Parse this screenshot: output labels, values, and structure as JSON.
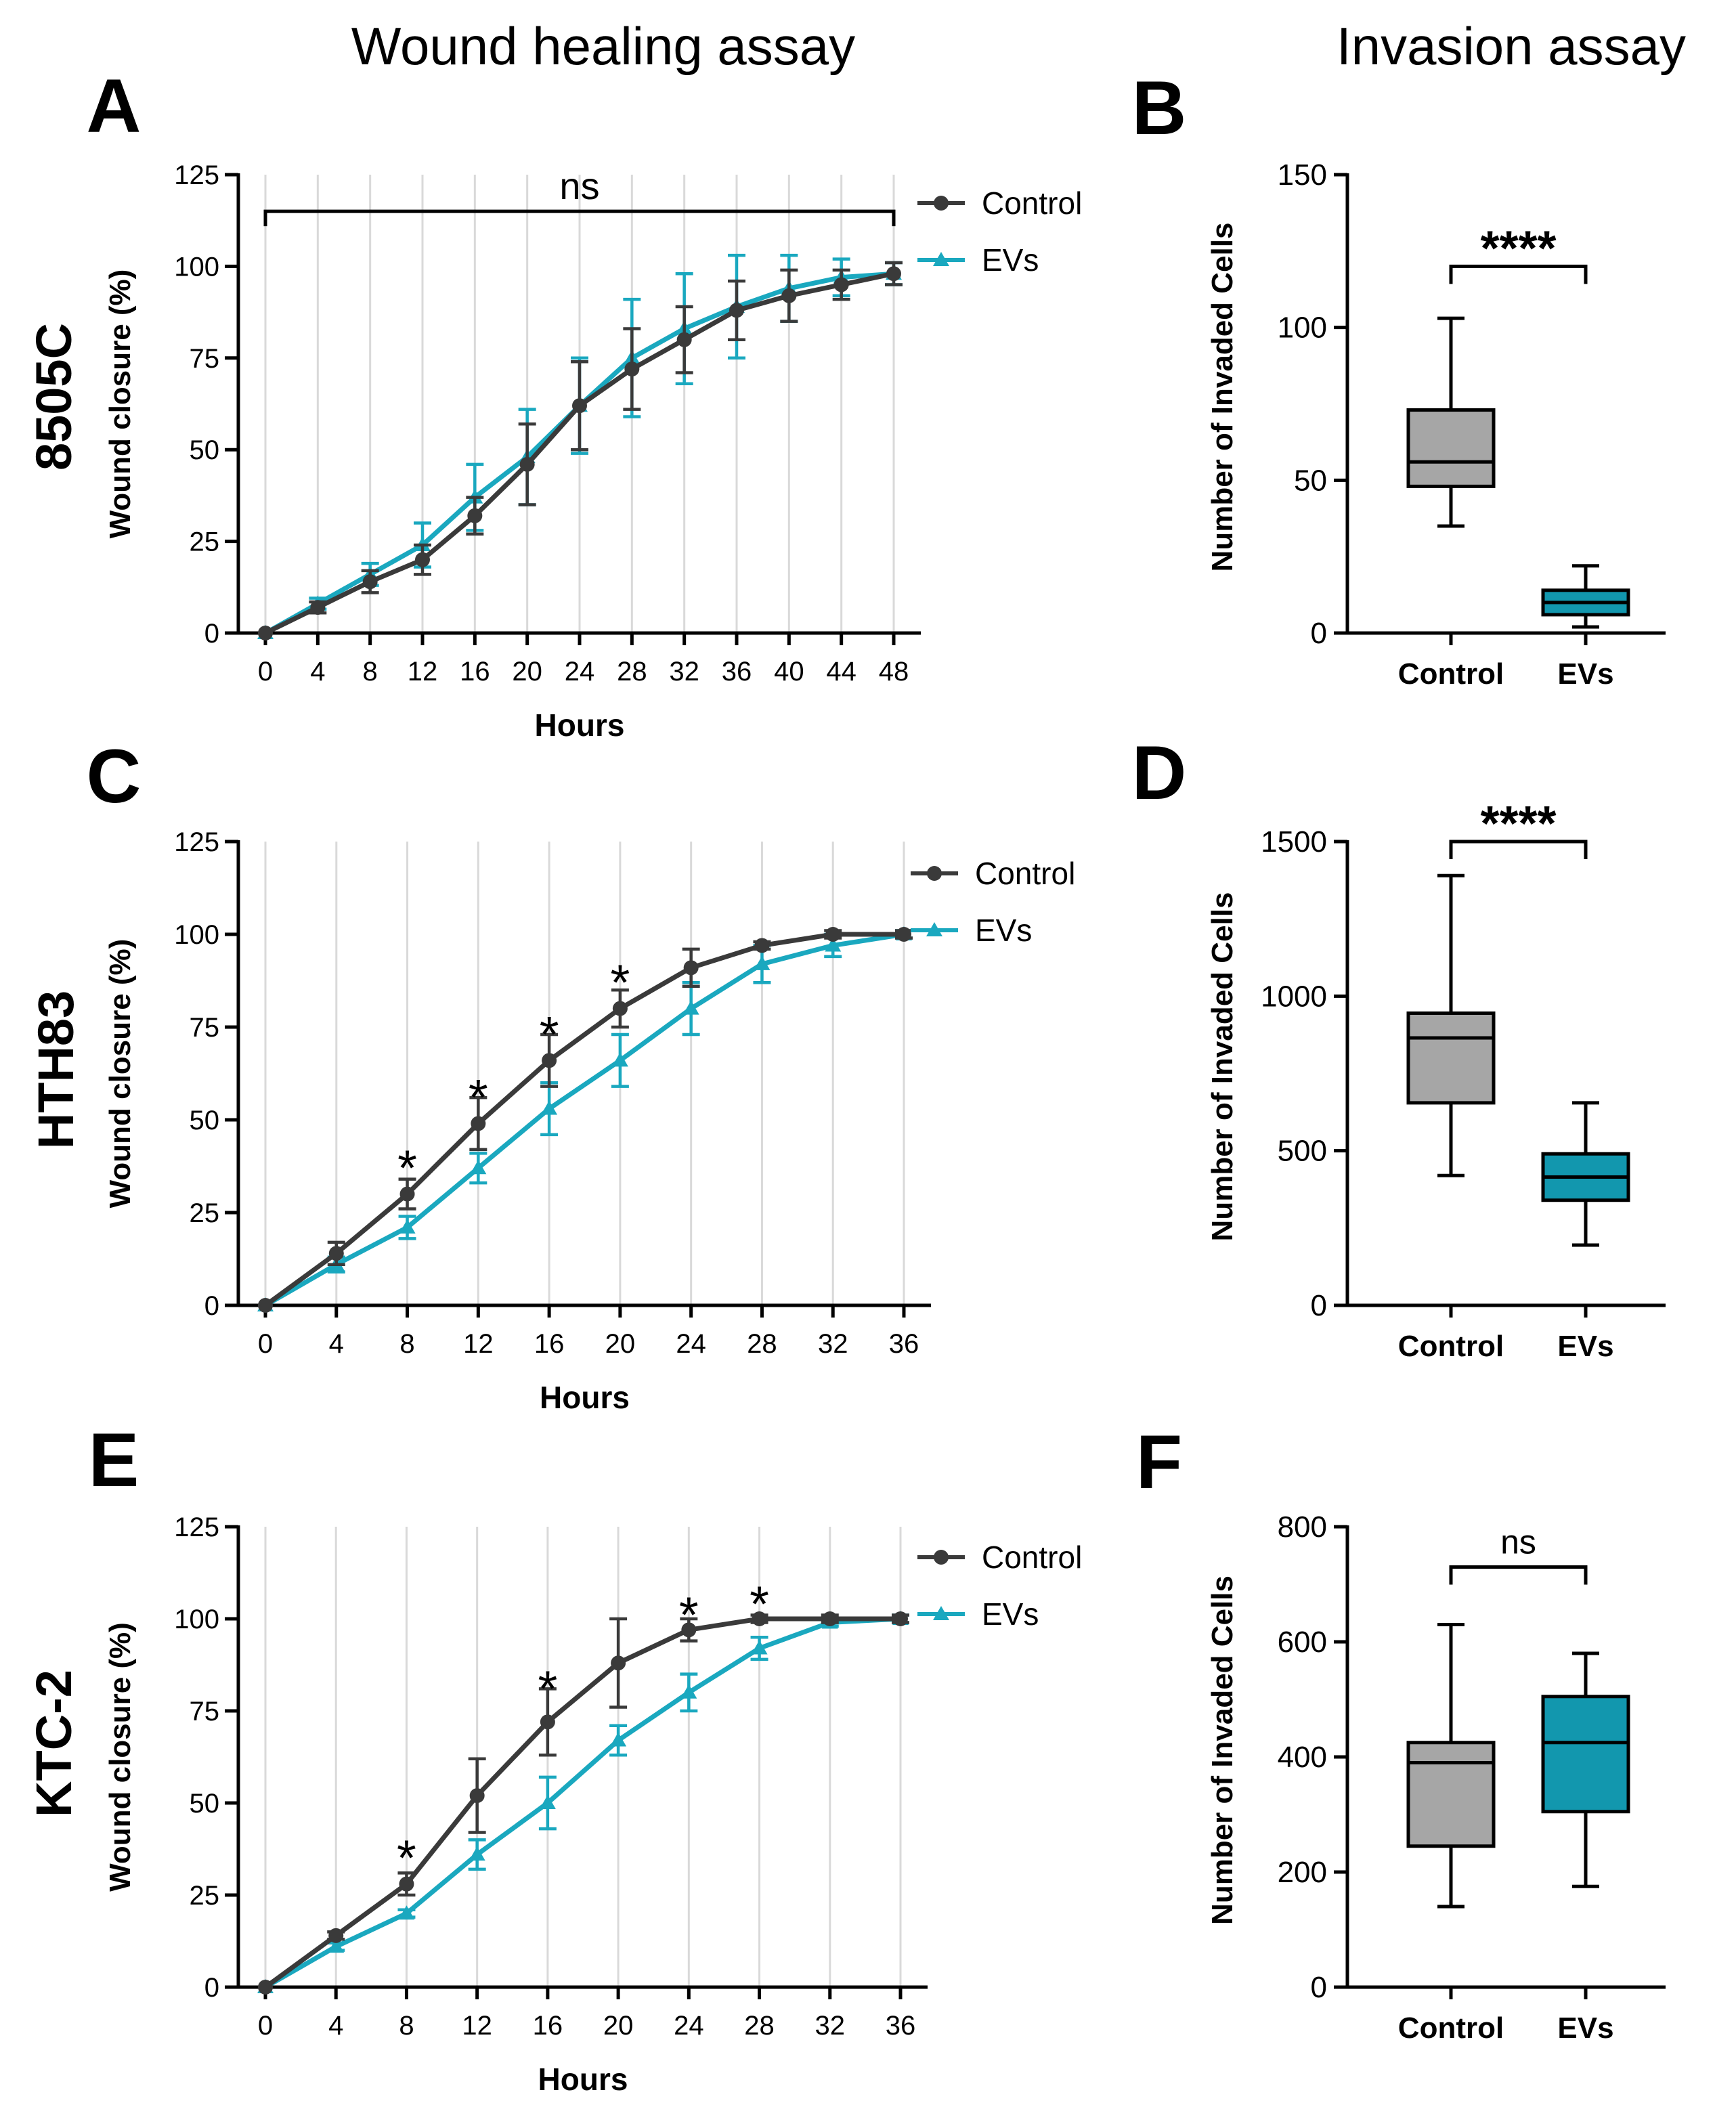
{
  "column_titles": [
    "Wound healing assay",
    "Invasion assay"
  ],
  "row_labels": [
    "8505C",
    "HTH83",
    "KTC-2"
  ],
  "colors": {
    "control": "#3a3a3a",
    "evs": "#1aa8bf",
    "control_box": "#a6a6a6",
    "evs_box": "#1297ae",
    "grid": "#d9d9d9",
    "axis": "#000000"
  },
  "chart_data": [
    {
      "panel": "A",
      "type": "line",
      "cell_line": "8505C",
      "xlabel": "Hours",
      "ylabel": "Wound closure (%)",
      "x": [
        0,
        4,
        8,
        12,
        16,
        20,
        24,
        28,
        32,
        36,
        40,
        44,
        48
      ],
      "ylim": [
        0,
        125
      ],
      "yticks": [
        0,
        25,
        50,
        75,
        100,
        125
      ],
      "series": [
        {
          "name": "Control",
          "values": [
            0,
            7,
            14,
            20,
            32,
            46,
            62,
            72,
            80,
            88,
            92,
            95,
            98
          ],
          "errors": [
            0,
            1.5,
            3,
            4,
            5,
            11,
            12,
            11,
            9,
            8,
            7,
            4,
            3
          ]
        },
        {
          "name": "EVs",
          "values": [
            0,
            8,
            16,
            24,
            37,
            48,
            62,
            75,
            83,
            89,
            94,
            97,
            98
          ],
          "errors": [
            0,
            1.5,
            3,
            6,
            9,
            13,
            13,
            16,
            15,
            14,
            9,
            5,
            3
          ]
        }
      ],
      "annotations": [
        {
          "text": "ns",
          "x_from": 0,
          "x_to": 48,
          "y": 115
        }
      ]
    },
    {
      "panel": "B",
      "type": "box",
      "cell_line": "8505C",
      "ylabel": "Number of Invaded Cells",
      "categories": [
        "Control",
        "EVs"
      ],
      "ylim": [
        0,
        150
      ],
      "yticks": [
        0,
        50,
        100,
        150
      ],
      "boxes": [
        {
          "name": "Control",
          "min": 35,
          "q1": 48,
          "median": 56,
          "q3": 73,
          "max": 103
        },
        {
          "name": "EVs",
          "min": 2,
          "q1": 6,
          "median": 10,
          "q3": 14,
          "max": 22
        }
      ],
      "significance": "****",
      "bracket_y": 120
    },
    {
      "panel": "C",
      "type": "line",
      "cell_line": "HTH83",
      "xlabel": "Hours",
      "ylabel": "Wound closure (%)",
      "x": [
        0,
        4,
        8,
        12,
        16,
        20,
        24,
        28,
        32,
        36
      ],
      "ylim": [
        0,
        125
      ],
      "yticks": [
        0,
        25,
        50,
        75,
        100,
        125
      ],
      "series": [
        {
          "name": "Control",
          "values": [
            0,
            14,
            30,
            49,
            66,
            80,
            91,
            97,
            100,
            100
          ],
          "errors": [
            0,
            3,
            4,
            7,
            7,
            5,
            5,
            1,
            1,
            1
          ]
        },
        {
          "name": "EVs",
          "values": [
            0,
            11,
            21,
            37,
            53,
            66,
            80,
            92,
            97,
            100
          ],
          "errors": [
            0,
            2,
            3,
            4,
            7,
            7,
            7,
            5,
            3,
            1
          ]
        }
      ],
      "annotations": [
        {
          "text": "*",
          "x": 8,
          "y": 39
        },
        {
          "text": "*",
          "x": 12,
          "y": 58
        },
        {
          "text": "*",
          "x": 16,
          "y": 75
        },
        {
          "text": "*",
          "x": 20,
          "y": 89
        }
      ]
    },
    {
      "panel": "D",
      "type": "box",
      "cell_line": "HTH83",
      "ylabel": "Number of Invaded Cells",
      "categories": [
        "Control",
        "EVs"
      ],
      "ylim": [
        0,
        1500
      ],
      "yticks": [
        0,
        500,
        1000,
        1500
      ],
      "boxes": [
        {
          "name": "Control",
          "min": 420,
          "q1": 655,
          "median": 865,
          "q3": 945,
          "max": 1390
        },
        {
          "name": "EVs",
          "min": 195,
          "q1": 340,
          "median": 415,
          "q3": 490,
          "max": 655
        }
      ],
      "significance": "****",
      "bracket_y": 1500
    },
    {
      "panel": "E",
      "type": "line",
      "cell_line": "KTC-2",
      "xlabel": "Hours",
      "ylabel": "Wound closure (%)",
      "x": [
        0,
        4,
        8,
        12,
        16,
        20,
        24,
        28,
        32,
        36
      ],
      "ylim": [
        0,
        125
      ],
      "yticks": [
        0,
        25,
        50,
        75,
        100,
        125
      ],
      "series": [
        {
          "name": "Control",
          "values": [
            0,
            14,
            28,
            52,
            72,
            88,
            97,
            100,
            100,
            100
          ],
          "errors": [
            0,
            1,
            3,
            10,
            9,
            12,
            3,
            1,
            1,
            1
          ]
        },
        {
          "name": "EVs",
          "values": [
            0,
            11,
            20,
            36,
            50,
            67,
            80,
            92,
            99,
            100
          ],
          "errors": [
            0,
            1,
            1,
            4,
            7,
            4,
            5,
            3,
            1,
            1
          ]
        }
      ],
      "annotations": [
        {
          "text": "*",
          "x": 8,
          "y": 37
        },
        {
          "text": "*",
          "x": 16,
          "y": 83
        },
        {
          "text": "*",
          "x": 24,
          "y": 103
        },
        {
          "text": "*",
          "x": 28,
          "y": 106
        }
      ]
    },
    {
      "panel": "F",
      "type": "box",
      "cell_line": "KTC-2",
      "ylabel": "Number of Invaded Cells",
      "categories": [
        "Control",
        "EVs"
      ],
      "ylim": [
        0,
        800
      ],
      "yticks": [
        0,
        200,
        400,
        600,
        800
      ],
      "boxes": [
        {
          "name": "Control",
          "min": 140,
          "q1": 245,
          "median": 390,
          "q3": 425,
          "max": 630
        },
        {
          "name": "EVs",
          "min": 175,
          "q1": 305,
          "median": 425,
          "q3": 505,
          "max": 580
        }
      ],
      "significance": "ns",
      "bracket_y": 730
    }
  ]
}
